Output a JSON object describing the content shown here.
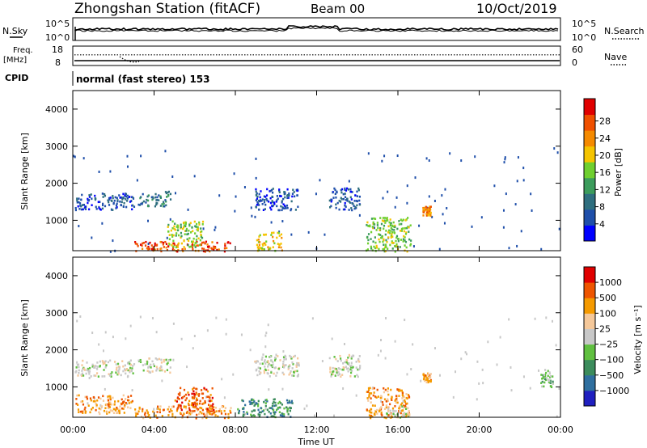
{
  "header": {
    "station": "Zhongshan Station (fitACF)",
    "beam": "Beam 00",
    "date": "10/Oct/2019"
  },
  "top_panel": {
    "left_label": "N.Sky",
    "right_label": "N.Search",
    "left_ticks": [
      "10^5",
      "10^0"
    ],
    "right_ticks": [
      "10^5",
      "10^0"
    ]
  },
  "freq_panel": {
    "left_label_1": "Freq.",
    "left_label_2": "[MHz]",
    "left_ticks": [
      "18",
      "8"
    ],
    "right_ticks": [
      "60",
      "0"
    ],
    "right_label": "Nave",
    "freq_mhz": 10.5,
    "nave": 33
  },
  "cpid": {
    "label": "CPID",
    "mode": "normal (fast stereo) 153"
  },
  "colors": {
    "power_scale": [
      "#0000ff",
      "#1f4faa",
      "#2f6f7f",
      "#3c9c5c",
      "#6fcf2f",
      "#f5c400",
      "#f58a00",
      "#f05000",
      "#e00000"
    ],
    "velocity_scale": [
      "#e00000",
      "#ee5500",
      "#f59a00",
      "#f5c89a",
      "#c8c8c8",
      "#60c040",
      "#3c8c5c",
      "#2f6f9f",
      "#2020c0"
    ]
  },
  "chart_data": [
    {
      "type": "heatmap",
      "name": "power",
      "xlabel": "",
      "ylabel": "Slant Range [km]",
      "xlim": [
        0,
        24
      ],
      "ylim": [
        180,
        4500
      ],
      "yticks": [
        "1000",
        "2000",
        "3000",
        "4000"
      ],
      "colorbar_label": "Power [dB]",
      "colorbar_ticks": [
        "4",
        "8",
        "12",
        "16",
        "20",
        "24",
        "28"
      ],
      "regions": [
        {
          "x0": 0.1,
          "x1": 3.0,
          "y0": 1300,
          "y1": 1750,
          "level": 1
        },
        {
          "x0": 3.2,
          "x1": 4.8,
          "y0": 1400,
          "y1": 1800,
          "level": 2
        },
        {
          "x0": 8.9,
          "x1": 11.1,
          "y0": 1300,
          "y1": 1900,
          "level": 1
        },
        {
          "x0": 12.6,
          "x1": 14.1,
          "y0": 1300,
          "y1": 1900,
          "level": 1
        },
        {
          "x0": 3.0,
          "x1": 7.8,
          "y0": 180,
          "y1": 450,
          "level": 7
        },
        {
          "x0": 4.6,
          "x1": 6.4,
          "y0": 300,
          "y1": 1000,
          "level": 4
        },
        {
          "x0": 9.0,
          "x1": 10.3,
          "y0": 200,
          "y1": 700,
          "level": 5
        },
        {
          "x0": 14.4,
          "x1": 16.6,
          "y0": 180,
          "y1": 1100,
          "level": 4
        },
        {
          "x0": 17.2,
          "x1": 17.6,
          "y0": 1150,
          "y1": 1400,
          "level": 6
        }
      ]
    },
    {
      "type": "heatmap",
      "name": "velocity",
      "xlabel": "Time UT",
      "ylabel": "Slant Range [km]",
      "xlim": [
        0,
        24
      ],
      "ylim": [
        180,
        4500
      ],
      "xticks": [
        "00:00",
        "04:00",
        "08:00",
        "12:00",
        "16:00",
        "20:00",
        "00:00"
      ],
      "yticks": [
        "1000",
        "2000",
        "3000",
        "4000"
      ],
      "colorbar_label": "Velocity [m s⁻¹]",
      "colorbar_ticks": [
        "1000",
        "500",
        "100",
        "25",
        "−25",
        "−100",
        "−500",
        "−1000"
      ],
      "regions": [
        {
          "x0": 0.1,
          "x1": 3.0,
          "y0": 1300,
          "y1": 1750,
          "level": 4
        },
        {
          "x0": 3.2,
          "x1": 4.8,
          "y0": 1400,
          "y1": 1800,
          "level": 4
        },
        {
          "x0": 8.9,
          "x1": 11.1,
          "y0": 1300,
          "y1": 1900,
          "level": 4
        },
        {
          "x0": 12.6,
          "x1": 14.1,
          "y0": 1300,
          "y1": 1900,
          "level": 4
        },
        {
          "x0": 0.1,
          "x1": 2.9,
          "y0": 300,
          "y1": 800,
          "level": 2
        },
        {
          "x0": 3.0,
          "x1": 7.8,
          "y0": 180,
          "y1": 500,
          "level": 2
        },
        {
          "x0": 5.0,
          "x1": 7.0,
          "y0": 400,
          "y1": 1000,
          "level": 1
        },
        {
          "x0": 8.0,
          "x1": 10.8,
          "y0": 200,
          "y1": 700,
          "level": 6
        },
        {
          "x0": 14.4,
          "x1": 16.6,
          "y0": 180,
          "y1": 1000,
          "level": 2
        },
        {
          "x0": 15.3,
          "x1": 16.6,
          "y0": 200,
          "y1": 500,
          "level": 4
        },
        {
          "x0": 17.2,
          "x1": 17.6,
          "y0": 1150,
          "y1": 1400,
          "level": 2
        },
        {
          "x0": 23.0,
          "x1": 23.6,
          "y0": 1000,
          "y1": 1500,
          "level": 5
        }
      ]
    }
  ]
}
